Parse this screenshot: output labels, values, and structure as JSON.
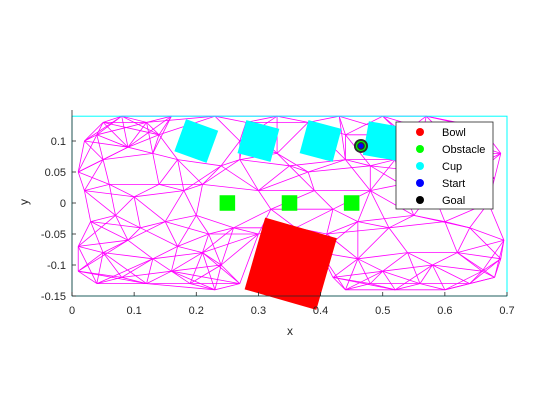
{
  "chart_data": {
    "type": "scatter",
    "title": "",
    "xlabel": "x",
    "ylabel": "y",
    "xlim": [
      0,
      0.7
    ],
    "ylim": [
      -0.15,
      0.15
    ],
    "xticks": [
      "0",
      "0.1",
      "0.2",
      "0.3",
      "0.4",
      "0.5",
      "0.6",
      "0.7"
    ],
    "yticks": [
      "-0.15",
      "-0.1",
      "-0.05",
      "0",
      "0.05",
      "0.1"
    ],
    "grid": false,
    "legend_position": "top-right",
    "legend": [
      {
        "label": "Bowl",
        "color": "#ff0000"
      },
      {
        "label": "Obstacle",
        "color": "#00ff00"
      },
      {
        "label": "Cup",
        "color": "#00ffff"
      },
      {
        "label": "Start",
        "color": "#0000ff"
      },
      {
        "label": "Goal",
        "color": "#000000"
      }
    ],
    "workspace_boundary": {
      "x": [
        0,
        0.7
      ],
      "y": [
        -0.15,
        0.14
      ],
      "color": "#00ffff"
    },
    "roadmap_color": "#ff00ff",
    "objects": {
      "bowl": {
        "center": [
          0.352,
          -0.098
        ],
        "size": 0.12,
        "angle_deg": 16,
        "color": "#ff0000"
      },
      "obstacles": [
        {
          "center": [
            0.25,
            0.0
          ],
          "size": 0.025
        },
        {
          "center": [
            0.35,
            0.0
          ],
          "size": 0.025
        },
        {
          "center": [
            0.45,
            0.0
          ],
          "size": 0.025
        }
      ],
      "cups": [
        {
          "center": [
            0.2,
            0.1
          ],
          "size": 0.055,
          "angle_deg": 20
        },
        {
          "center": [
            0.3,
            0.1
          ],
          "size": 0.055,
          "angle_deg": 15
        },
        {
          "center": [
            0.4,
            0.1
          ],
          "size": 0.055,
          "angle_deg": 15
        },
        {
          "center": [
            0.5,
            0.1
          ],
          "size": 0.055,
          "angle_deg": 10
        }
      ],
      "start": {
        "x": 0.465,
        "y": 0.092
      },
      "goal": {
        "x": 0.465,
        "y": 0.092
      }
    },
    "roadmap_nodes": [
      [
        0.02,
        0.1
      ],
      [
        0.05,
        0.13
      ],
      [
        0.08,
        0.14
      ],
      [
        0.12,
        0.13
      ],
      [
        0.16,
        0.14
      ],
      [
        0.23,
        0.14
      ],
      [
        0.28,
        0.13
      ],
      [
        0.33,
        0.14
      ],
      [
        0.38,
        0.13
      ],
      [
        0.43,
        0.14
      ],
      [
        0.5,
        0.14
      ],
      [
        0.57,
        0.14
      ],
      [
        0.62,
        0.13
      ],
      [
        0.66,
        0.12
      ],
      [
        0.69,
        0.08
      ],
      [
        0.01,
        0.05
      ],
      [
        0.05,
        0.07
      ],
      [
        0.09,
        0.09
      ],
      [
        0.13,
        0.08
      ],
      [
        0.17,
        0.07
      ],
      [
        0.24,
        0.06
      ],
      [
        0.27,
        0.07
      ],
      [
        0.35,
        0.06
      ],
      [
        0.38,
        0.05
      ],
      [
        0.44,
        0.07
      ],
      [
        0.48,
        0.06
      ],
      [
        0.52,
        0.07
      ],
      [
        0.56,
        0.09
      ],
      [
        0.61,
        0.08
      ],
      [
        0.65,
        0.06
      ],
      [
        0.68,
        0.04
      ],
      [
        0.02,
        0.02
      ],
      [
        0.06,
        0.03
      ],
      [
        0.1,
        0.01
      ],
      [
        0.14,
        0.03
      ],
      [
        0.18,
        0.02
      ],
      [
        0.21,
        0.03
      ],
      [
        0.3,
        0.02
      ],
      [
        0.32,
        -0.01
      ],
      [
        0.39,
        0.02
      ],
      [
        0.42,
        -0.01
      ],
      [
        0.48,
        0.02
      ],
      [
        0.53,
        0.03
      ],
      [
        0.58,
        0.02
      ],
      [
        0.63,
        0.03
      ],
      [
        0.67,
        0.0
      ],
      [
        0.03,
        -0.03
      ],
      [
        0.07,
        -0.02
      ],
      [
        0.11,
        -0.04
      ],
      [
        0.15,
        -0.03
      ],
      [
        0.2,
        -0.02
      ],
      [
        0.26,
        -0.04
      ],
      [
        0.3,
        -0.05
      ],
      [
        0.36,
        -0.04
      ],
      [
        0.41,
        -0.05
      ],
      [
        0.46,
        -0.03
      ],
      [
        0.51,
        -0.04
      ],
      [
        0.55,
        -0.02
      ],
      [
        0.6,
        -0.03
      ],
      [
        0.64,
        -0.04
      ],
      [
        0.695,
        -0.06
      ],
      [
        0.01,
        -0.07
      ],
      [
        0.05,
        -0.08
      ],
      [
        0.09,
        -0.06
      ],
      [
        0.13,
        -0.09
      ],
      [
        0.17,
        -0.07
      ],
      [
        0.21,
        -0.08
      ],
      [
        0.24,
        -0.1
      ],
      [
        0.27,
        -0.13
      ],
      [
        0.42,
        -0.12
      ],
      [
        0.46,
        -0.09
      ],
      [
        0.5,
        -0.11
      ],
      [
        0.54,
        -0.08
      ],
      [
        0.58,
        -0.1
      ],
      [
        0.62,
        -0.08
      ],
      [
        0.66,
        -0.11
      ],
      [
        0.69,
        -0.09
      ],
      [
        0.01,
        -0.11
      ],
      [
        0.04,
        -0.13
      ],
      [
        0.08,
        -0.12
      ],
      [
        0.12,
        -0.13
      ],
      [
        0.16,
        -0.11
      ],
      [
        0.19,
        -0.13
      ],
      [
        0.23,
        -0.14
      ],
      [
        0.44,
        -0.14
      ],
      [
        0.48,
        -0.13
      ],
      [
        0.52,
        -0.14
      ],
      [
        0.56,
        -0.13
      ],
      [
        0.6,
        -0.14
      ],
      [
        0.64,
        -0.13
      ],
      [
        0.68,
        -0.12
      ],
      [
        0.04,
        0.11
      ],
      [
        0.14,
        0.11
      ],
      [
        0.27,
        0.1
      ],
      [
        0.33,
        0.08
      ],
      [
        0.44,
        0.11
      ],
      [
        0.53,
        0.11
      ],
      [
        0.6,
        0.11
      ],
      [
        0.22,
        -0.05
      ],
      [
        0.4,
        -0.08
      ],
      [
        0.57,
        0.05
      ]
    ]
  }
}
